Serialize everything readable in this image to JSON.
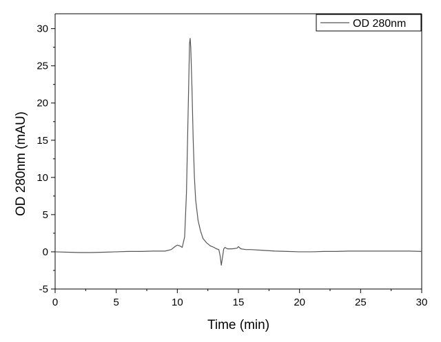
{
  "chart_data": {
    "type": "line",
    "title": "",
    "xlabel": "Time (min)",
    "ylabel": "OD 280nm (mAU)",
    "xlim": [
      0,
      30
    ],
    "ylim": [
      -5,
      32
    ],
    "xticks": [
      0,
      5,
      10,
      15,
      20,
      25,
      30
    ],
    "xtick_labels": [
      "0",
      "5",
      "10",
      "15",
      "20",
      "25",
      "30"
    ],
    "yticks": [
      -5,
      0,
      5,
      10,
      15,
      20,
      25,
      30
    ],
    "ytick_labels": [
      "-5",
      "0",
      "5",
      "10",
      "15",
      "20",
      "25",
      "30"
    ],
    "grid": false,
    "legend_position": "top-right",
    "series": [
      {
        "name": "OD 280nm",
        "color": "#555555",
        "x": [
          0,
          1,
          2,
          3,
          4,
          5,
          6,
          7,
          8,
          9,
          9.5,
          9.8,
          10.0,
          10.2,
          10.4,
          10.6,
          10.75,
          10.85,
          10.95,
          11.0,
          11.05,
          11.1,
          11.2,
          11.3,
          11.4,
          11.5,
          11.7,
          11.9,
          12.1,
          12.4,
          12.7,
          13.0,
          13.2,
          13.4,
          13.5,
          13.6,
          13.7,
          13.8,
          13.9,
          14.1,
          14.5,
          14.9,
          15.0,
          15.2,
          15.6,
          16,
          17,
          18,
          19,
          20,
          21,
          22,
          23,
          24,
          25,
          26,
          27,
          28,
          29,
          30
        ],
        "y": [
          0.0,
          -0.05,
          -0.1,
          -0.1,
          -0.05,
          0.0,
          0.05,
          0.05,
          0.1,
          0.1,
          0.3,
          0.7,
          0.9,
          0.8,
          0.6,
          2.0,
          8.0,
          16.0,
          24.0,
          28.0,
          28.7,
          27.5,
          22.0,
          15.0,
          10.0,
          7.0,
          4.2,
          2.8,
          1.8,
          1.2,
          0.8,
          0.6,
          0.4,
          0.3,
          -0.5,
          -1.8,
          -0.7,
          0.4,
          0.6,
          0.4,
          0.4,
          0.5,
          0.7,
          0.4,
          0.3,
          0.3,
          0.2,
          0.1,
          0.05,
          0.0,
          0.0,
          0.05,
          0.05,
          0.1,
          0.1,
          0.1,
          0.1,
          0.1,
          0.1,
          0.05
        ]
      }
    ]
  }
}
